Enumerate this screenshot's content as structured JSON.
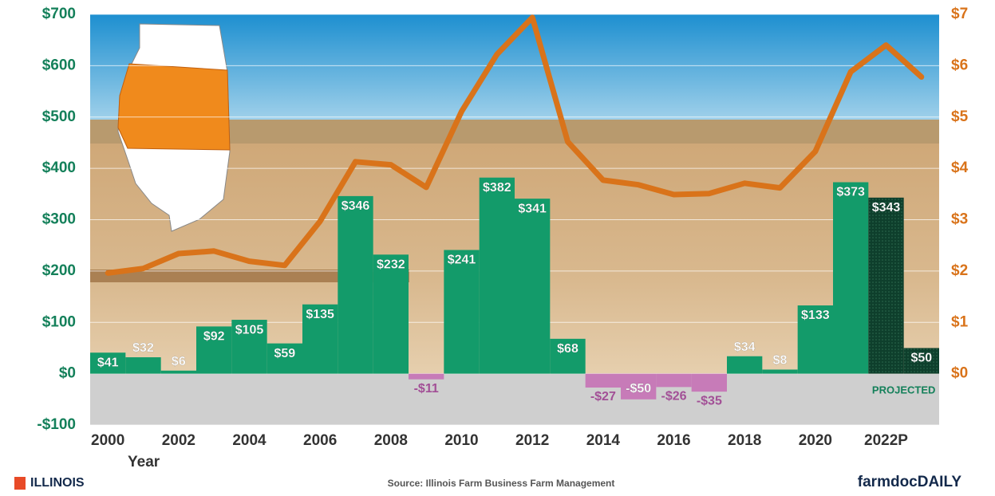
{
  "chart_data": {
    "type": "combo",
    "categories": [
      "2000",
      null,
      "2002",
      null,
      "2004",
      null,
      "2006",
      null,
      "2008",
      null,
      "2010",
      null,
      "2012",
      null,
      "2014",
      null,
      "2016",
      null,
      "2018",
      null,
      "2020",
      null,
      "2022P",
      null
    ],
    "x_label": "Year",
    "series": [
      {
        "type": "bar",
        "values": [
          41,
          32,
          6,
          92,
          105,
          59,
          135,
          346,
          232,
          -11,
          241,
          382,
          341,
          68,
          -27,
          -50,
          -26,
          -35,
          34,
          8,
          133,
          373,
          343,
          50
        ],
        "value_labels": [
          "$41",
          "$32",
          "$6",
          "$92",
          "$105",
          "$59",
          "$135",
          "$346",
          "$232",
          "-$11",
          "$241",
          "$382",
          "$341",
          "$68",
          "-$27",
          "-$50",
          "-$26",
          "-$35",
          "$34",
          "$8",
          "$133",
          "$373",
          "$343",
          "$50"
        ],
        "colors": [
          "#139b6a",
          "#139b6a",
          "#139b6a",
          "#139b6a",
          "#139b6a",
          "#139b6a",
          "#139b6a",
          "#139b6a",
          "#139b6a",
          "#c77bb8",
          "#139b6a",
          "#139b6a",
          "#139b6a",
          "#139b6a",
          "#c77bb8",
          "#c77bb8",
          "#c77bb8",
          "#c77bb8",
          "#139b6a",
          "#139b6a",
          "#139b6a",
          "#139b6a",
          "#0e3f2c",
          "#0e3f2c"
        ]
      },
      {
        "type": "line",
        "axis": "y2",
        "color": "#d9731a",
        "values": [
          1.96,
          2.05,
          2.34,
          2.39,
          2.19,
          2.11,
          2.97,
          4.13,
          4.07,
          3.63,
          5.11,
          6.22,
          6.94,
          4.52,
          3.77,
          3.68,
          3.49,
          3.51,
          3.71,
          3.62,
          4.33,
          5.88,
          6.4,
          5.78
        ]
      }
    ],
    "ylim": [
      -100,
      700
    ],
    "yticks": [
      {
        "value": -100,
        "label": "-$100"
      },
      {
        "value": 0,
        "label": "$0"
      },
      {
        "value": 100,
        "label": "$100"
      },
      {
        "value": 200,
        "label": "$200"
      },
      {
        "value": 300,
        "label": "$300"
      },
      {
        "value": 400,
        "label": "$400"
      },
      {
        "value": 500,
        "label": "$500"
      },
      {
        "value": 600,
        "label": "$600"
      },
      {
        "value": 700,
        "label": "$700"
      }
    ],
    "y2lim": [
      -1,
      7
    ],
    "y2ticks": [
      {
        "value": 0,
        "label": "$0"
      },
      {
        "value": 1,
        "label": "$1"
      },
      {
        "value": 2,
        "label": "$2"
      },
      {
        "value": 3,
        "label": "$3"
      },
      {
        "value": 4,
        "label": "$4"
      },
      {
        "value": 5,
        "label": "$5"
      },
      {
        "value": 6,
        "label": "$6"
      },
      {
        "value": 7,
        "label": "$7"
      }
    ],
    "grid": true,
    "annotation": "PROJECTED",
    "logo_left": "ILLINOIS",
    "source": "Source:  Illinois Farm Business Farm Management",
    "logo_right": "farmdocDAILY"
  }
}
